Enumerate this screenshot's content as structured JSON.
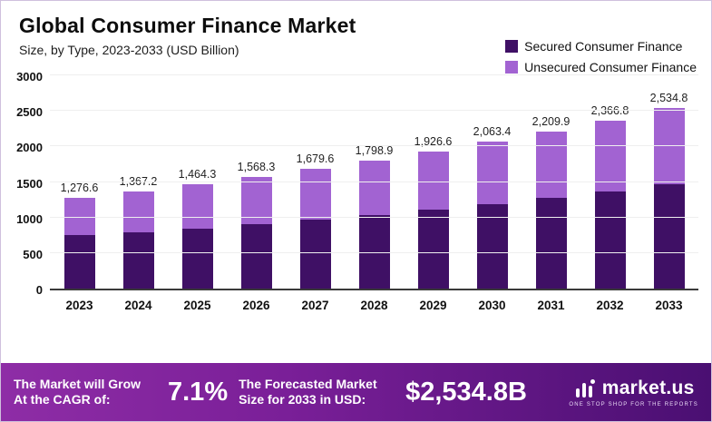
{
  "title": "Global Consumer Finance Market",
  "subtitle": "Size, by Type, 2023-2033 (USD Billion)",
  "legend": [
    {
      "label": "Secured Consumer Finance",
      "color": "#3f1065"
    },
    {
      "label": "Unsecured Consumer Finance",
      "color": "#a263d2"
    }
  ],
  "chart_data": {
    "type": "bar",
    "subtype": "stacked",
    "title": "Global Consumer Finance Market Size, by Type, 2023-2033 (USD Billion)",
    "categories": [
      "2023",
      "2024",
      "2025",
      "2026",
      "2027",
      "2028",
      "2029",
      "2030",
      "2031",
      "2032",
      "2033"
    ],
    "series": [
      {
        "name": "Secured Consumer Finance",
        "color": "#3f1065",
        "values": [
          750,
          795,
          845,
          905,
          965,
          1035,
          1110,
          1185,
          1280,
          1365,
          1465
        ]
      },
      {
        "name": "Unsecured Consumer Finance",
        "color": "#a263d2",
        "values": [
          526.6,
          572.2,
          619.3,
          663.3,
          714.6,
          763.9,
          816.6,
          878.4,
          929.9,
          1001.8,
          1069.8
        ]
      }
    ],
    "totals": [
      1276.6,
      1367.2,
      1464.3,
      1568.3,
      1679.6,
      1798.9,
      1926.6,
      2063.4,
      2209.9,
      2366.8,
      2534.8
    ],
    "total_labels": [
      "1,276.6",
      "1,367.2",
      "1,464.3",
      "1,568.3",
      "1,679.6",
      "1,798.9",
      "1,926.6",
      "2,063.4",
      "2,209.9",
      "2,366.8",
      "2,534.8"
    ],
    "xlabel": "",
    "ylabel": "",
    "ylim": [
      0,
      3000
    ],
    "yticks": [
      0,
      500,
      1000,
      1500,
      2000,
      2500,
      3000
    ],
    "grid": true,
    "legend_position": "top-right"
  },
  "footer": {
    "cagr_label": "The Market will Grow At the CAGR of:",
    "cagr_value": "7.1%",
    "forecast_label": "The Forecasted Market Size for 2033 in USD:",
    "forecast_value": "$2,534.8B",
    "brand": "market.us",
    "brand_tagline": "ONE STOP SHOP FOR THE REPORTS"
  }
}
